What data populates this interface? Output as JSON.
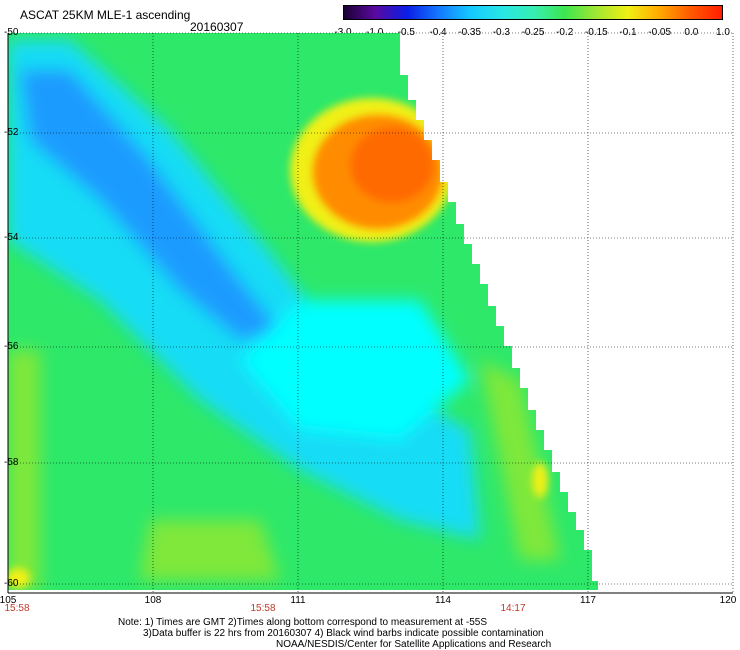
{
  "header": {
    "title": "ASCAT 25KM MLE-1 ascending",
    "date": "20160307"
  },
  "colorbar": {
    "labels": [
      "-3.0",
      "-1.0",
      "-0.5",
      "-0.4",
      "-0.35",
      "-0.3",
      "-0.25",
      "-0.2",
      "-0.15",
      "-0.1",
      "-0.05",
      "0.0",
      "1.0"
    ],
    "colors": [
      "#1a0033",
      "#5a0aa0",
      "#0a1ee6",
      "#1478ff",
      "#14c8ff",
      "#28e6e6",
      "#36eeb4",
      "#3ce650",
      "#a0e632",
      "#f0f014",
      "#ffaa00",
      "#ff5a00",
      "#ff1e00"
    ]
  },
  "map": {
    "lon_ticks": [
      "105",
      "108",
      "111",
      "114",
      "117",
      "120"
    ],
    "lat_ticks": [
      "-50",
      "-52",
      "-54",
      "-56",
      "-58",
      "-60"
    ],
    "times": [
      "15:58",
      "15:58",
      "14:17"
    ],
    "colors": {
      "cyan_deep": "#1e9bff",
      "cyan": "#14dcf5",
      "aqua": "#00ffff",
      "green": "#2ee86a",
      "lime": "#7fe83a",
      "yellow": "#f0f014",
      "orange": "#ff8c00",
      "orange_dark": "#ff6a00"
    }
  },
  "notes": {
    "line1": "Note: 1) Times are GMT 2)Times along bottom correspond to measurement at -55S",
    "line2": "3)Data buffer is 22 hrs from 20160307 4) Black wind barbs indicate possible contamination",
    "line3": "NOAA/NESDIS/Center for Satellite Applications and Research"
  }
}
